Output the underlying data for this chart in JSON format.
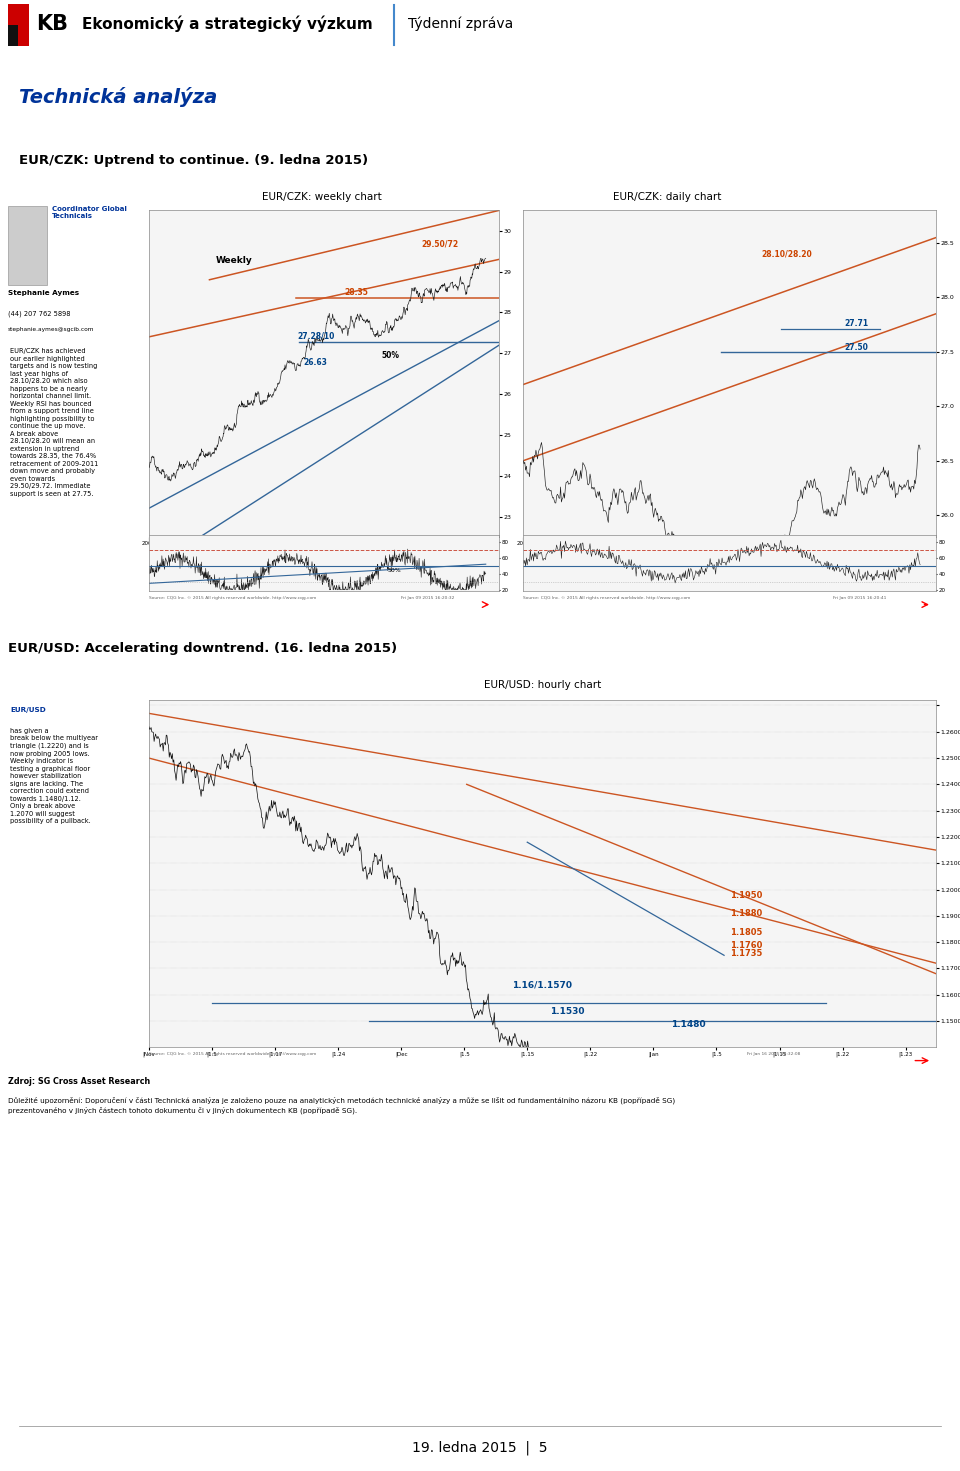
{
  "page_title_left": "Ekonomický a strategický výzkum",
  "page_title_right": "Týdenní zpráva",
  "section1_title": "Technická analýza",
  "section2_title": "EUR/CZK: Uptrend to continue.",
  "section2_date": "(9. ledna 2015)",
  "weekly_chart_title": "EUR/CZK: weekly chart",
  "daily_chart_title": "EUR/CZK: daily chart",
  "hourly_section_title": "EUR/USD: Accelerating downtrend.",
  "hourly_section_date": "(16. ledna 2015)",
  "hourly_chart_title": "EUR/USD: hourly chart",
  "coordinator_name": "Coordinator Global\nTechnicals",
  "analyst_name": "Stephanie Aymes",
  "analyst_phone": "(44) 207 762 5898",
  "analyst_email": "stephanie.aymes@sgcib.com",
  "footer_source": "Zdroj: SG Cross Asset Research",
  "footer_disclaimer": "Důležité upozornění: Doporučení v části Technická analýza je založeno pouze na analytických metodách technické analýzy a může se lišit od fundamentálního názoru KB (popřípadě SG)\nprezentovaného v jiných částech tohoto dokumentu či v jiných dokumentech KB (popřípadě SG).",
  "page_number": "19. ledna 2015  |  5",
  "bg_color": "#ffffff",
  "header_red": "#cc0000",
  "blue_text": "#003399",
  "orange_line": "#cc5522",
  "blue_line": "#336699",
  "dark_line": "#333333",
  "label_orange": "#cc4400",
  "label_blue": "#004488"
}
